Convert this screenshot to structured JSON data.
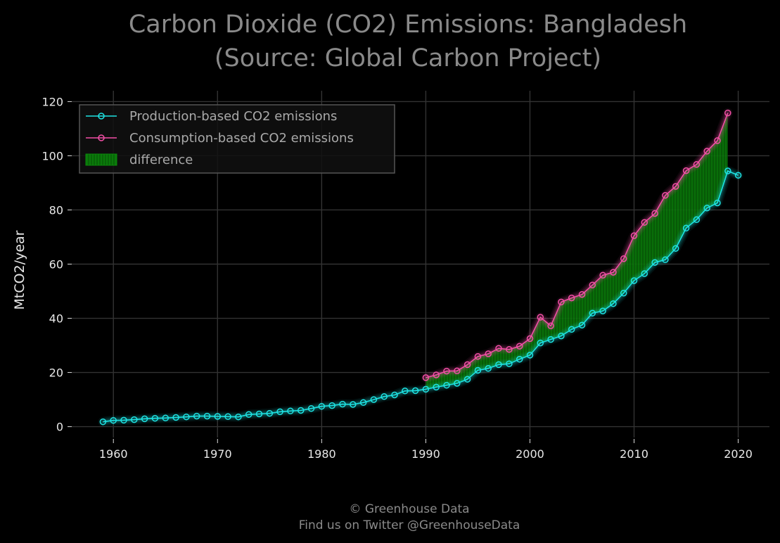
{
  "chart_data": {
    "type": "line",
    "title": "Carbon Dioxide (CO2) Emissions: Bangladesh",
    "subtitle": "(Source: Global Carbon Project)",
    "xlabel": "",
    "ylabel": "MtCO2/year",
    "xlim": [
      1956,
      2023
    ],
    "ylim": [
      -4,
      124
    ],
    "xticks": [
      1960,
      1970,
      1980,
      1990,
      2000,
      2010,
      2020
    ],
    "yticks": [
      0,
      20,
      40,
      60,
      80,
      100,
      120
    ],
    "grid": true,
    "legend_position": "upper-left",
    "series": [
      {
        "name": "Production-based CO2 emissions",
        "color": "#1ee3e3",
        "x": [
          1959,
          1960,
          1961,
          1962,
          1963,
          1964,
          1965,
          1966,
          1967,
          1968,
          1969,
          1970,
          1971,
          1972,
          1973,
          1974,
          1975,
          1976,
          1977,
          1978,
          1979,
          1980,
          1981,
          1982,
          1983,
          1984,
          1985,
          1986,
          1987,
          1988,
          1989,
          1990,
          1991,
          1992,
          1993,
          1994,
          1995,
          1996,
          1997,
          1998,
          1999,
          2000,
          2001,
          2002,
          2003,
          2004,
          2005,
          2006,
          2007,
          2008,
          2009,
          2010,
          2011,
          2012,
          2013,
          2014,
          2015,
          2016,
          2017,
          2018,
          2019,
          2020
        ],
        "values": [
          1.8,
          2.3,
          2.4,
          2.6,
          2.9,
          3.1,
          3.2,
          3.4,
          3.6,
          3.9,
          3.9,
          3.8,
          3.7,
          3.6,
          4.5,
          4.7,
          4.9,
          5.5,
          5.8,
          6.0,
          6.7,
          7.5,
          7.8,
          8.3,
          8.2,
          8.9,
          10.0,
          11.1,
          11.7,
          13.2,
          13.3,
          13.8,
          14.6,
          15.3,
          16.0,
          17.5,
          20.8,
          21.5,
          22.9,
          23.2,
          24.9,
          26.4,
          30.9,
          32.2,
          33.5,
          35.9,
          37.5,
          41.9,
          42.7,
          45.4,
          49.3,
          53.9,
          56.5,
          60.6,
          61.6,
          65.8,
          73.3,
          76.4,
          80.7,
          82.6,
          94.4,
          92.8
        ]
      },
      {
        "name": "Consumption-based CO2 emissions",
        "color": "#f24fa6",
        "x": [
          1990,
          1991,
          1992,
          1993,
          1994,
          1995,
          1996,
          1997,
          1998,
          1999,
          2000,
          2001,
          2002,
          2003,
          2004,
          2005,
          2006,
          2007,
          2008,
          2009,
          2010,
          2011,
          2012,
          2013,
          2014,
          2015,
          2016,
          2017,
          2018,
          2019
        ],
        "values": [
          18.1,
          19.1,
          20.5,
          20.6,
          22.9,
          25.9,
          26.9,
          28.9,
          28.5,
          29.7,
          32.5,
          40.4,
          37.2,
          46.0,
          47.5,
          48.8,
          52.3,
          55.9,
          57.0,
          62.0,
          70.5,
          75.4,
          78.7,
          85.4,
          88.7,
          94.5,
          96.8,
          101.7,
          105.6,
          115.8
        ]
      }
    ],
    "fill": {
      "name": "difference",
      "color": "#0b8a0b"
    }
  },
  "credit": {
    "line1": "© Greenhouse Data",
    "line2": "Find us on Twitter @GreenhouseData"
  }
}
